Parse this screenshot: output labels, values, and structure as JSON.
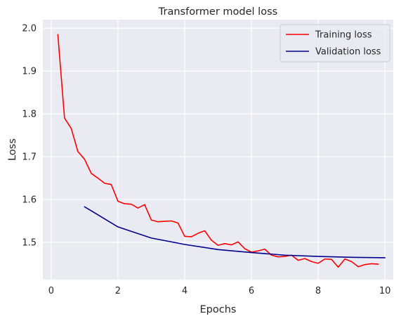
{
  "chart_data": {
    "type": "line",
    "title": "Transformer model loss",
    "xlabel": "Epochs",
    "ylabel": "Loss",
    "xlim": [
      -0.25,
      10.25
    ],
    "ylim": [
      1.413,
      2.02
    ],
    "xticks": [
      0,
      2,
      4,
      6,
      8,
      10
    ],
    "yticks": [
      1.5,
      1.6,
      1.7,
      1.8,
      1.9,
      2.0
    ],
    "xtick_labels": [
      "0",
      "2",
      "4",
      "6",
      "8",
      "10"
    ],
    "ytick_labels": [
      "1.5",
      "1.6",
      "1.7",
      "1.8",
      "1.9",
      "2.0"
    ],
    "grid": true,
    "legend_position": "top-right",
    "series": [
      {
        "name": "Training loss",
        "color": "#ff0000",
        "x": [
          0.2,
          0.4,
          0.6,
          0.8,
          1.0,
          1.2,
          1.4,
          1.6,
          1.8,
          2.0,
          2.2,
          2.4,
          2.6,
          2.8,
          3.0,
          3.2,
          3.4,
          3.6,
          3.8,
          4.0,
          4.2,
          4.4,
          4.6,
          4.8,
          5.0,
          5.2,
          5.4,
          5.6,
          5.8,
          6.0,
          6.2,
          6.4,
          6.6,
          6.8,
          7.0,
          7.2,
          7.4,
          7.6,
          7.8,
          8.0,
          8.2,
          8.4,
          8.6,
          8.8,
          9.0,
          9.2,
          9.4,
          9.6,
          9.8
        ],
        "values": [
          1.985,
          1.79,
          1.766,
          1.712,
          1.694,
          1.661,
          1.65,
          1.638,
          1.635,
          1.596,
          1.59,
          1.589,
          1.58,
          1.588,
          1.552,
          1.548,
          1.549,
          1.55,
          1.545,
          1.514,
          1.513,
          1.521,
          1.527,
          1.505,
          1.493,
          1.497,
          1.494,
          1.501,
          1.485,
          1.477,
          1.48,
          1.484,
          1.47,
          1.466,
          1.467,
          1.47,
          1.458,
          1.462,
          1.455,
          1.451,
          1.461,
          1.46,
          1.442,
          1.461,
          1.455,
          1.443,
          1.448,
          1.45,
          1.449
        ]
      },
      {
        "name": "Validation loss",
        "color": "#00008b",
        "x": [
          1,
          2,
          3,
          4,
          5,
          6,
          7,
          8,
          9,
          10
        ],
        "values": [
          1.583,
          1.536,
          1.51,
          1.495,
          1.483,
          1.476,
          1.47,
          1.467,
          1.465,
          1.464
        ]
      }
    ]
  }
}
